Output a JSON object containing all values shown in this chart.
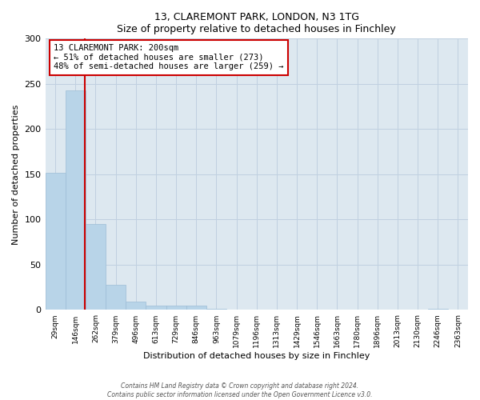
{
  "title1": "13, CLAREMONT PARK, LONDON, N3 1TG",
  "title2": "Size of property relative to detached houses in Finchley",
  "xlabel": "Distribution of detached houses by size in Finchley",
  "ylabel": "Number of detached properties",
  "bar_labels": [
    "29sqm",
    "146sqm",
    "262sqm",
    "379sqm",
    "496sqm",
    "613sqm",
    "729sqm",
    "846sqm",
    "963sqm",
    "1079sqm",
    "1196sqm",
    "1313sqm",
    "1429sqm",
    "1546sqm",
    "1663sqm",
    "1780sqm",
    "1896sqm",
    "2013sqm",
    "2130sqm",
    "2246sqm",
    "2363sqm"
  ],
  "bar_values": [
    152,
    243,
    95,
    28,
    9,
    5,
    5,
    5,
    1,
    0,
    0,
    0,
    0,
    0,
    0,
    0,
    0,
    0,
    0,
    1,
    0
  ],
  "bar_color": "#b8d4e8",
  "bar_edge_color": "#9dbdd6",
  "property_line_color": "#cc0000",
  "annotation_line1": "13 CLAREMONT PARK: 200sqm",
  "annotation_line2": "← 51% of detached houses are smaller (273)",
  "annotation_line3": "48% of semi-detached houses are larger (259) →",
  "annotation_box_color": "#ffffff",
  "annotation_box_edge_color": "#cc0000",
  "ylim": [
    0,
    300
  ],
  "yticks": [
    0,
    50,
    100,
    150,
    200,
    250,
    300
  ],
  "footer1": "Contains HM Land Registry data © Crown copyright and database right 2024.",
  "footer2": "Contains public sector information licensed under the Open Government Licence v3.0.",
  "background_color": "#ffffff",
  "axes_bg_color": "#dde8f0",
  "grid_color": "#c0d0e0"
}
